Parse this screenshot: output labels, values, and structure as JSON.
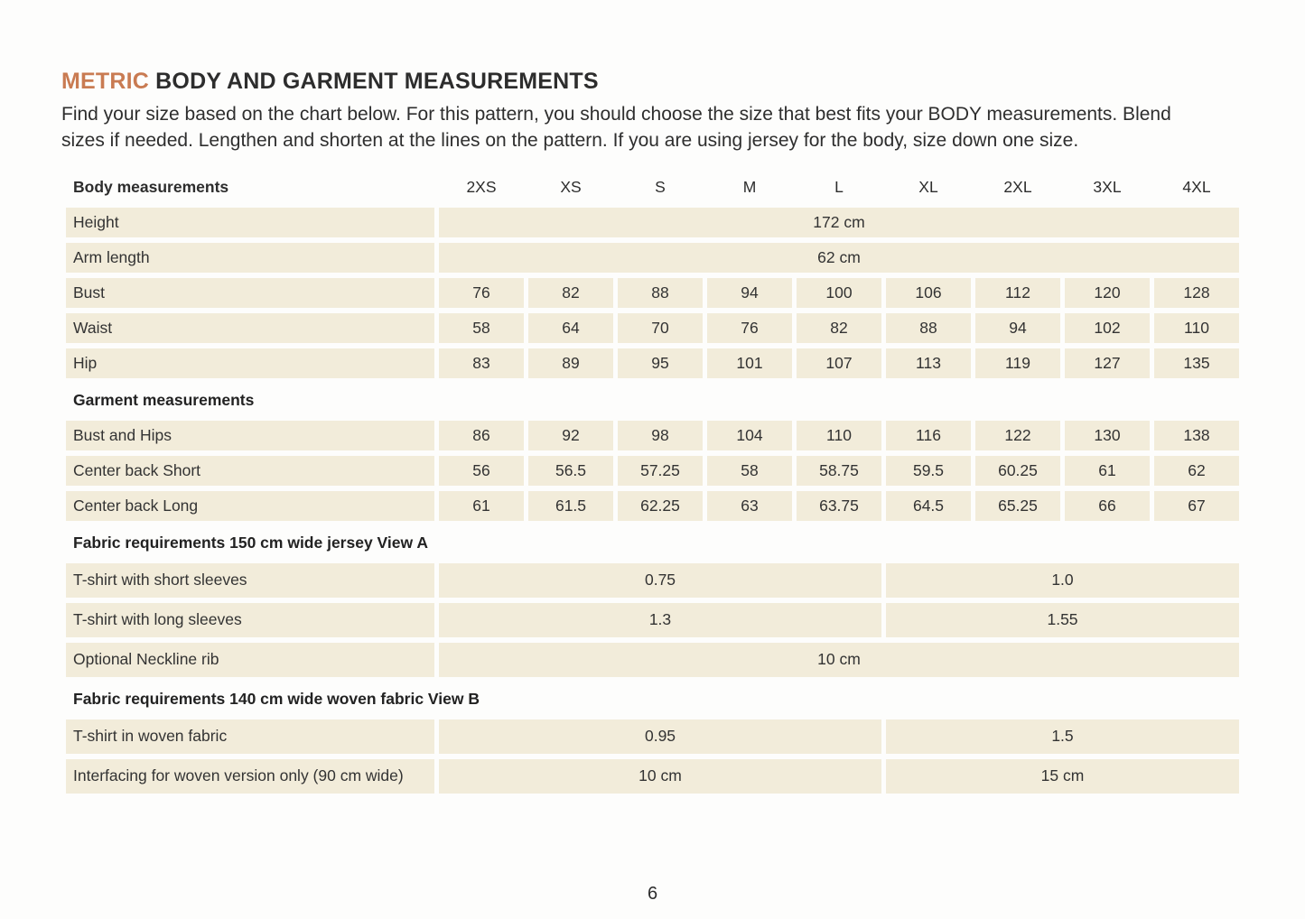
{
  "page": {
    "title_highlight": "METRIC",
    "title_rest": " BODY AND GARMENT MEASUREMENTS",
    "intro": "Find your size based on the chart below. For this pattern, you should choose the size that best fits your BODY measurements. Blend sizes if needed. Lengthen and shorten at the lines on the pattern. If you are using jersey for the body, size down one size.",
    "page_number": "6"
  },
  "colors": {
    "accent": "#c97b52",
    "cell_background": "#f2ecda",
    "text": "#2d2d2d"
  },
  "table": {
    "size_headers": [
      "2XS",
      "XS",
      "S",
      "M",
      "L",
      "XL",
      "2XL",
      "3XL",
      "4XL"
    ],
    "sections": [
      {
        "title": "Body measurements",
        "rows": [
          {
            "label": "Height",
            "cells": [
              {
                "value": "172 cm",
                "span": 9
              }
            ]
          },
          {
            "label": "Arm length",
            "cells": [
              {
                "value": "62 cm",
                "span": 9
              }
            ]
          },
          {
            "label": "Bust",
            "cells": [
              {
                "value": "76"
              },
              {
                "value": "82"
              },
              {
                "value": "88"
              },
              {
                "value": "94"
              },
              {
                "value": "100"
              },
              {
                "value": "106"
              },
              {
                "value": "112"
              },
              {
                "value": "120"
              },
              {
                "value": "128"
              }
            ]
          },
          {
            "label": "Waist",
            "cells": [
              {
                "value": "58"
              },
              {
                "value": "64"
              },
              {
                "value": "70"
              },
              {
                "value": "76"
              },
              {
                "value": "82"
              },
              {
                "value": "88"
              },
              {
                "value": "94"
              },
              {
                "value": "102"
              },
              {
                "value": "110"
              }
            ]
          },
          {
            "label": "Hip",
            "cells": [
              {
                "value": "83"
              },
              {
                "value": "89"
              },
              {
                "value": "95"
              },
              {
                "value": "101"
              },
              {
                "value": "107"
              },
              {
                "value": "113"
              },
              {
                "value": "119"
              },
              {
                "value": "127"
              },
              {
                "value": "135"
              }
            ]
          }
        ]
      },
      {
        "title": "Garment measurements",
        "rows": [
          {
            "label": "Bust and Hips",
            "cells": [
              {
                "value": "86"
              },
              {
                "value": "92"
              },
              {
                "value": "98"
              },
              {
                "value": "104"
              },
              {
                "value": "110"
              },
              {
                "value": "116"
              },
              {
                "value": "122"
              },
              {
                "value": "130"
              },
              {
                "value": "138"
              }
            ]
          },
          {
            "label": "Center back Short",
            "cells": [
              {
                "value": "56"
              },
              {
                "value": "56.5"
              },
              {
                "value": "57.25"
              },
              {
                "value": "58"
              },
              {
                "value": "58.75"
              },
              {
                "value": "59.5"
              },
              {
                "value": "60.25"
              },
              {
                "value": "61"
              },
              {
                "value": "62"
              }
            ]
          },
          {
            "label": "Center back Long",
            "cells": [
              {
                "value": "61"
              },
              {
                "value": "61.5"
              },
              {
                "value": "62.25"
              },
              {
                "value": "63"
              },
              {
                "value": "63.75"
              },
              {
                "value": "64.5"
              },
              {
                "value": "65.25"
              },
              {
                "value": "66"
              },
              {
                "value": "67"
              }
            ]
          }
        ]
      },
      {
        "title": "Fabric requirements 150 cm wide jersey View A",
        "rows": [
          {
            "label": "T-shirt with short sleeves",
            "cells": [
              {
                "value": "0.75",
                "span": 5
              },
              {
                "value": "1.0",
                "span": 4
              }
            ]
          },
          {
            "label": "T-shirt with long sleeves",
            "cells": [
              {
                "value": "1.3",
                "span": 5
              },
              {
                "value": "1.55",
                "span": 4
              }
            ]
          },
          {
            "label": "Optional Neckline rib",
            "cells": [
              {
                "value": "10 cm",
                "span": 9
              }
            ]
          }
        ]
      },
      {
        "title": "Fabric requirements 140 cm wide woven fabric View B",
        "rows": [
          {
            "label": "T-shirt in woven fabric",
            "cells": [
              {
                "value": "0.95",
                "span": 5
              },
              {
                "value": "1.5",
                "span": 4
              }
            ]
          },
          {
            "label": "Interfacing for woven version only (90 cm wide)",
            "cells": [
              {
                "value": "10 cm",
                "span": 5
              },
              {
                "value": "15 cm",
                "span": 4
              }
            ]
          }
        ]
      }
    ]
  }
}
